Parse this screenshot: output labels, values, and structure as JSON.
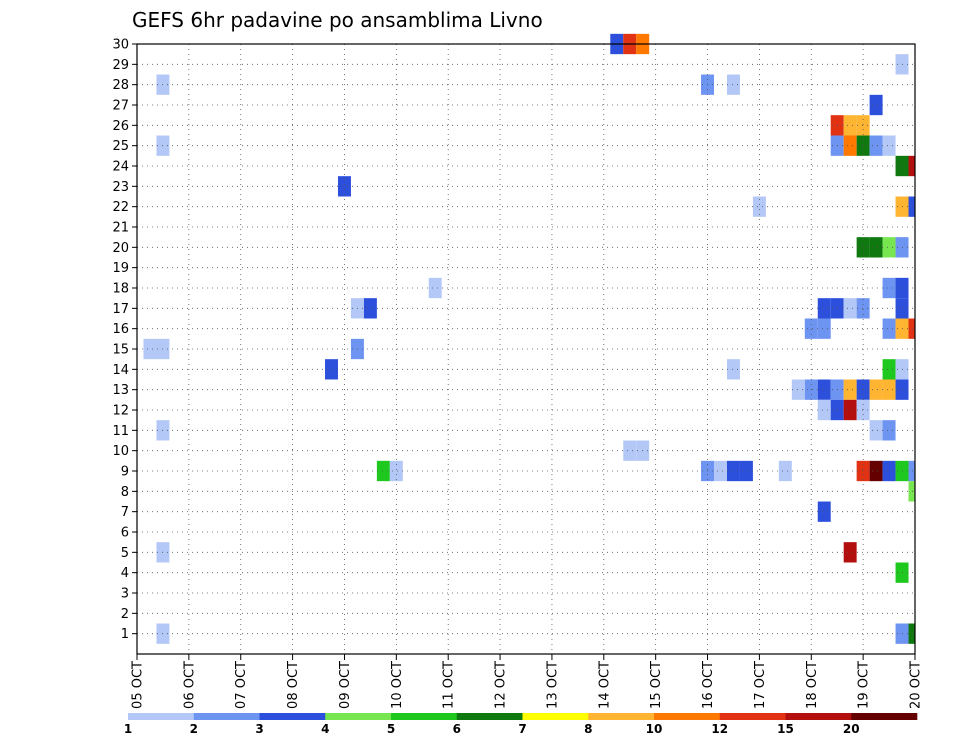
{
  "chart_data": {
    "type": "heatmap",
    "title": "GEFS 6hr padavine po ansamblima Livno",
    "xlabel": "",
    "ylabel": "",
    "x_tick_labels": [
      "05 OCT",
      "06 OCT",
      "07 OCT",
      "08 OCT",
      "09 OCT",
      "10 OCT",
      "11 OCT",
      "12 OCT",
      "13 OCT",
      "14 OCT",
      "15 OCT",
      "16 OCT",
      "17 OCT",
      "18 OCT",
      "19 OCT",
      "20 OCT"
    ],
    "y_tick_labels": [
      "1",
      "2",
      "3",
      "4",
      "5",
      "6",
      "7",
      "8",
      "9",
      "10",
      "11",
      "12",
      "13",
      "14",
      "15",
      "16",
      "17",
      "18",
      "19",
      "20",
      "21",
      "22",
      "23",
      "24",
      "25",
      "26",
      "27",
      "28",
      "29",
      "30"
    ],
    "x_range_days": [
      0,
      15
    ],
    "y_range": [
      0,
      30
    ],
    "grid": true,
    "colorbar": {
      "colors": [
        "#b4c8f7",
        "#6e94f2",
        "#2d50dc",
        "#78e650",
        "#1ec81e",
        "#0f780f",
        "#ffff00",
        "#ffb432",
        "#ff7800",
        "#e13214",
        "#b40f0f",
        "#640000"
      ],
      "tick_labels": [
        "1",
        "2",
        "3",
        "4",
        "5",
        "6",
        "7",
        "8",
        "10",
        "12",
        "15",
        "20"
      ]
    },
    "cells": [
      {
        "d": 9.25,
        "m": 30,
        "c": 2
      },
      {
        "d": 9.5,
        "m": 30,
        "c": 9
      },
      {
        "d": 9.75,
        "m": 30,
        "c": 8
      },
      {
        "d": 0.5,
        "m": 28,
        "c": 0
      },
      {
        "d": 11.0,
        "m": 28,
        "c": 1
      },
      {
        "d": 11.5,
        "m": 28,
        "c": 0
      },
      {
        "d": 14.75,
        "m": 29,
        "c": 0
      },
      {
        "d": 14.25,
        "m": 27,
        "c": 2
      },
      {
        "d": 13.5,
        "m": 26,
        "c": 9
      },
      {
        "d": 13.75,
        "m": 26,
        "c": 7
      },
      {
        "d": 14.0,
        "m": 26,
        "c": 7
      },
      {
        "d": 0.5,
        "m": 25,
        "c": 0
      },
      {
        "d": 13.5,
        "m": 25,
        "c": 1
      },
      {
        "d": 13.75,
        "m": 25,
        "c": 8
      },
      {
        "d": 14.0,
        "m": 25,
        "c": 5
      },
      {
        "d": 14.25,
        "m": 25,
        "c": 1
      },
      {
        "d": 14.5,
        "m": 25,
        "c": 0
      },
      {
        "d": 14.75,
        "m": 24,
        "c": 5
      },
      {
        "d": 15.0,
        "m": 24,
        "c": 10
      },
      {
        "d": 4.0,
        "m": 23,
        "c": 2
      },
      {
        "d": 12.0,
        "m": 22,
        "c": 0
      },
      {
        "d": 14.75,
        "m": 22,
        "c": 7
      },
      {
        "d": 15.0,
        "m": 22,
        "c": 2
      },
      {
        "d": 14.0,
        "m": 20,
        "c": 5
      },
      {
        "d": 14.25,
        "m": 20,
        "c": 5
      },
      {
        "d": 14.5,
        "m": 20,
        "c": 3
      },
      {
        "d": 14.75,
        "m": 20,
        "c": 1
      },
      {
        "d": 5.75,
        "m": 18,
        "c": 0
      },
      {
        "d": 14.5,
        "m": 18,
        "c": 1
      },
      {
        "d": 14.75,
        "m": 18,
        "c": 2
      },
      {
        "d": 4.25,
        "m": 17,
        "c": 0
      },
      {
        "d": 4.5,
        "m": 17,
        "c": 2
      },
      {
        "d": 13.25,
        "m": 17,
        "c": 2
      },
      {
        "d": 13.5,
        "m": 17,
        "c": 2
      },
      {
        "d": 13.75,
        "m": 17,
        "c": 0
      },
      {
        "d": 14.0,
        "m": 17,
        "c": 1
      },
      {
        "d": 14.75,
        "m": 17,
        "c": 2
      },
      {
        "d": 13.0,
        "m": 16,
        "c": 1
      },
      {
        "d": 13.25,
        "m": 16,
        "c": 1
      },
      {
        "d": 14.5,
        "m": 16,
        "c": 1
      },
      {
        "d": 14.75,
        "m": 16,
        "c": 7
      },
      {
        "d": 15.0,
        "m": 16,
        "c": 9
      },
      {
        "d": 0.25,
        "m": 15,
        "c": 0
      },
      {
        "d": 0.5,
        "m": 15,
        "c": 0
      },
      {
        "d": 4.25,
        "m": 15,
        "c": 1
      },
      {
        "d": 3.75,
        "m": 14,
        "c": 2
      },
      {
        "d": 11.5,
        "m": 14,
        "c": 0
      },
      {
        "d": 14.5,
        "m": 14,
        "c": 4
      },
      {
        "d": 14.75,
        "m": 14,
        "c": 0
      },
      {
        "d": 12.75,
        "m": 13,
        "c": 0
      },
      {
        "d": 13.0,
        "m": 13,
        "c": 1
      },
      {
        "d": 13.25,
        "m": 13,
        "c": 2
      },
      {
        "d": 13.5,
        "m": 13,
        "c": 1
      },
      {
        "d": 13.75,
        "m": 13,
        "c": 7
      },
      {
        "d": 14.0,
        "m": 13,
        "c": 2
      },
      {
        "d": 14.25,
        "m": 13,
        "c": 7
      },
      {
        "d": 14.5,
        "m": 13,
        "c": 7
      },
      {
        "d": 14.75,
        "m": 13,
        "c": 2
      },
      {
        "d": 13.25,
        "m": 12,
        "c": 0
      },
      {
        "d": 13.5,
        "m": 12,
        "c": 2
      },
      {
        "d": 13.75,
        "m": 12,
        "c": 10
      },
      {
        "d": 14.0,
        "m": 12,
        "c": 0
      },
      {
        "d": 0.5,
        "m": 11,
        "c": 0
      },
      {
        "d": 14.25,
        "m": 11,
        "c": 0
      },
      {
        "d": 14.5,
        "m": 11,
        "c": 1
      },
      {
        "d": 9.5,
        "m": 10,
        "c": 0
      },
      {
        "d": 9.75,
        "m": 10,
        "c": 0
      },
      {
        "d": 4.75,
        "m": 9,
        "c": 4
      },
      {
        "d": 5.0,
        "m": 9,
        "c": 0
      },
      {
        "d": 11.0,
        "m": 9,
        "c": 1
      },
      {
        "d": 11.25,
        "m": 9,
        "c": 0
      },
      {
        "d": 11.5,
        "m": 9,
        "c": 2
      },
      {
        "d": 11.75,
        "m": 9,
        "c": 2
      },
      {
        "d": 12.5,
        "m": 9,
        "c": 0
      },
      {
        "d": 14.0,
        "m": 9,
        "c": 9
      },
      {
        "d": 14.25,
        "m": 9,
        "c": 11
      },
      {
        "d": 14.5,
        "m": 9,
        "c": 2
      },
      {
        "d": 14.75,
        "m": 9,
        "c": 4
      },
      {
        "d": 15.0,
        "m": 9,
        "c": 1
      },
      {
        "d": 15.0,
        "m": 8,
        "c": 3
      },
      {
        "d": 13.25,
        "m": 7,
        "c": 2
      },
      {
        "d": 13.75,
        "m": 5,
        "c": 10
      },
      {
        "d": 14.75,
        "m": 4,
        "c": 4
      },
      {
        "d": 0.5,
        "m": 5,
        "c": 0
      },
      {
        "d": 0.5,
        "m": 1,
        "c": 0
      },
      {
        "d": 14.75,
        "m": 1,
        "c": 1
      },
      {
        "d": 15.0,
        "m": 1,
        "c": 5
      }
    ]
  }
}
